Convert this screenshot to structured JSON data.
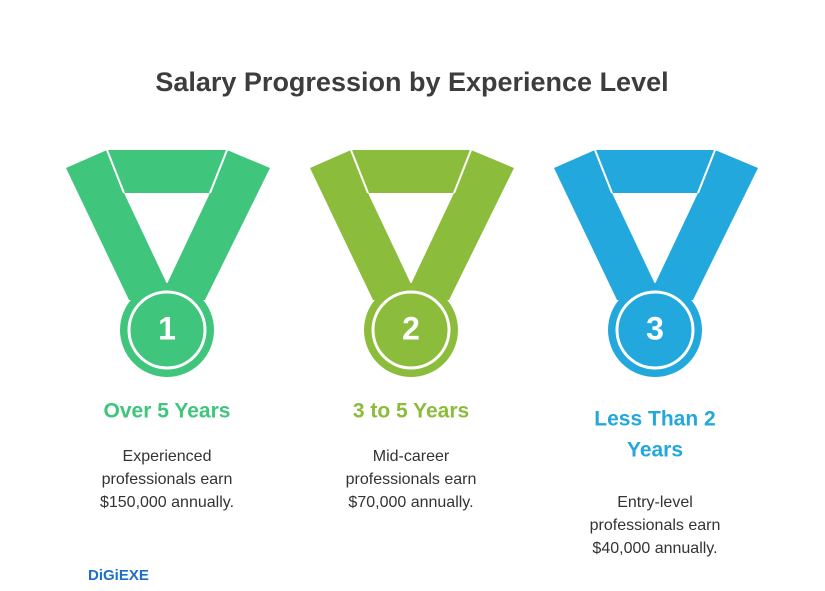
{
  "title": "Salary Progression by Experience Level",
  "items": [
    {
      "number": "1",
      "color": "#3fc57c",
      "heading": [
        "Over 5 Years"
      ],
      "description": [
        "Experienced",
        "professionals earn",
        "$150,000 annually."
      ]
    },
    {
      "number": "2",
      "color": "#8cbc3b",
      "heading": [
        "3 to 5 Years"
      ],
      "description": [
        "Mid-career",
        "professionals earn",
        "$70,000 annually."
      ]
    },
    {
      "number": "3",
      "color": "#22a8dd",
      "heading": [
        "Less Than 2",
        "Years"
      ],
      "description": [
        "Entry-level",
        "professionals earn",
        "$40,000 annually."
      ]
    }
  ],
  "brand": "DiGiEXE"
}
